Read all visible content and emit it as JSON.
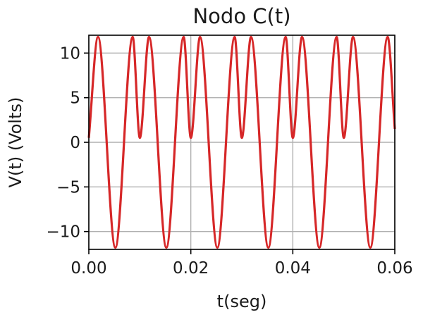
{
  "chart_data": {
    "type": "line",
    "title": "Nodo C(t)",
    "xlabel": "t(seg)",
    "ylabel": "V(t) (Volts)",
    "xlim": [
      0,
      0.06
    ],
    "ylim": [
      -12,
      12
    ],
    "x_ticks": [
      0,
      0.02,
      0.04,
      0.06
    ],
    "x_tick_labels": [
      "0.00",
      "0.02",
      "0.04",
      "0.06"
    ],
    "y_ticks": [
      -10,
      -5,
      0,
      5,
      10
    ],
    "y_tick_labels": [
      "−10",
      "−5",
      "0",
      "5",
      "10"
    ],
    "grid": true,
    "series": [
      {
        "color": "#d62728",
        "x": [
          0,
          0.0018,
          0.0052,
          0.0086,
          0.01,
          0.0118,
          0.0152,
          0.0186,
          0.02,
          0.0218,
          0.0252,
          0.0286,
          0.03,
          0.0318,
          0.0352,
          0.0386,
          0.04,
          0.0418,
          0.0452,
          0.0486,
          0.05,
          0.0518,
          0.0552,
          0.0586,
          0.06
        ],
        "y": [
          0.5,
          11.8,
          -11.8,
          11.8,
          0.5,
          11.8,
          -11.8,
          11.8,
          0.5,
          11.8,
          -11.8,
          11.8,
          0.5,
          11.8,
          -11.8,
          11.8,
          0.5,
          11.8,
          -11.8,
          11.8,
          0.5,
          11.8,
          -11.8,
          11.8,
          1.5
        ]
      }
    ]
  }
}
